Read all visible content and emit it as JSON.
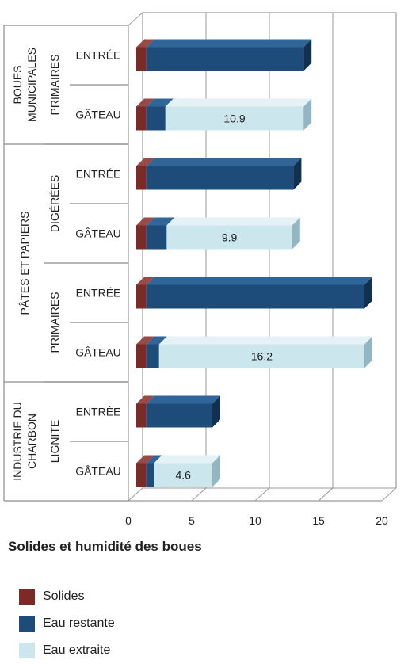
{
  "chart_data": {
    "type": "bar",
    "orientation": "horizontal",
    "stacked": true,
    "xlim": [
      0,
      20
    ],
    "xticks": [
      "0",
      "5",
      "10",
      "15",
      "20"
    ],
    "grid": true,
    "groups": [
      {
        "label": "BOUES MUNICIPALES",
        "subgroups": [
          {
            "label": "PRIMAIRES",
            "rows": [
              {
                "label": "ENTRÉE",
                "solides": 0.8,
                "eau_restante": 12.4,
                "eau_extraite": 0
              },
              {
                "label": "GÂTEAU",
                "solides": 0.8,
                "eau_restante": 1.5,
                "eau_extraite": 10.9,
                "value_label": "10.9"
              }
            ]
          }
        ]
      },
      {
        "label": "PÂTES ET PAPIERS",
        "subgroups": [
          {
            "label": "DIGÉRÉES",
            "rows": [
              {
                "label": "ENTRÉE",
                "solides": 0.8,
                "eau_restante": 11.6,
                "eau_extraite": 0
              },
              {
                "label": "GÂTEAU",
                "solides": 0.8,
                "eau_restante": 1.6,
                "eau_extraite": 9.9,
                "value_label": "9.9"
              }
            ]
          },
          {
            "label": "PRIMAIRES",
            "rows": [
              {
                "label": "ENTRÉE",
                "solides": 0.8,
                "eau_restante": 17.2,
                "eau_extraite": 0
              },
              {
                "label": "GÂTEAU",
                "solides": 0.8,
                "eau_restante": 1.0,
                "eau_extraite": 16.2,
                "value_label": "16.2"
              }
            ]
          }
        ]
      },
      {
        "label": "INDUSTRIE DU CHARBON",
        "subgroups": [
          {
            "label": "LIGNITE",
            "rows": [
              {
                "label": "ENTRÉE",
                "solides": 0.8,
                "eau_restante": 5.2,
                "eau_extraite": 0
              },
              {
                "label": "GÂTEAU",
                "solides": 0.8,
                "eau_restante": 0.6,
                "eau_extraite": 4.6,
                "value_label": "4.6"
              }
            ]
          }
        ]
      }
    ],
    "series": [
      {
        "key": "solides",
        "name": "Solides",
        "color": "#7a2a27"
      },
      {
        "key": "eau_restante",
        "name": "Eau restante",
        "color": "#1e4c7a"
      },
      {
        "key": "eau_extraite",
        "name": "Eau extraite",
        "color": "#cce6ee"
      }
    ]
  },
  "legend": {
    "title": "Solides et humidité des boues",
    "items": [
      {
        "label": "Solides",
        "color": "#7a2a27"
      },
      {
        "label": "Eau restante",
        "color": "#1e4c7a"
      },
      {
        "label": "Eau extraite",
        "color": "#cce6ee"
      }
    ]
  }
}
